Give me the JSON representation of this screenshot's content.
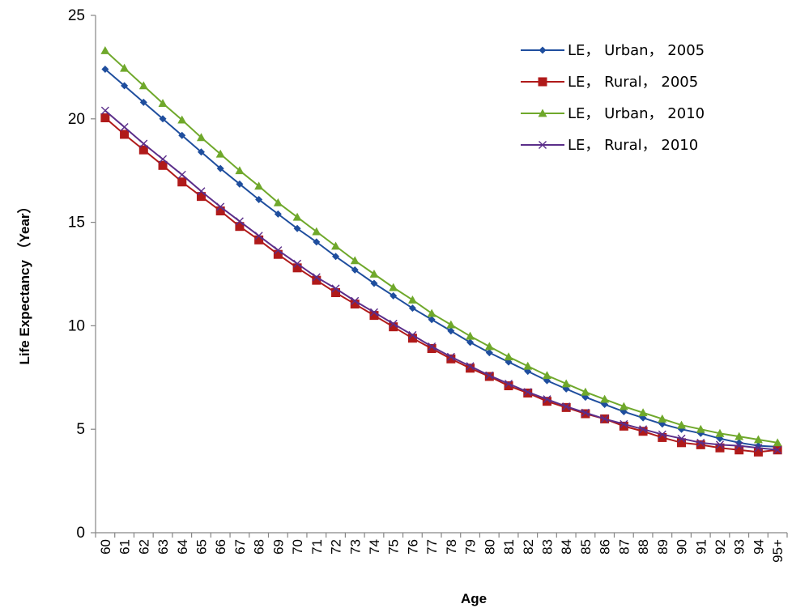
{
  "chart_data": {
    "type": "line",
    "title": "",
    "xlabel": "Age",
    "ylabel": "Life Expectancy （Year）",
    "ylim": [
      0,
      25
    ],
    "yticks": [
      "0",
      "5",
      "10",
      "15",
      "20",
      "25"
    ],
    "grid": false,
    "legend_position": "top-right",
    "categories": [
      "60",
      "61",
      "62",
      "63",
      "64",
      "65",
      "66",
      "67",
      "68",
      "69",
      "70",
      "71",
      "72",
      "73",
      "74",
      "75",
      "76",
      "77",
      "78",
      "79",
      "80",
      "81",
      "82",
      "83",
      "84",
      "85",
      "86",
      "87",
      "88",
      "89",
      "90",
      "91",
      "92",
      "93",
      "94",
      "95+"
    ],
    "series": [
      {
        "name": "LE， Urban， 2005",
        "color": "#1F4E9E",
        "marker": "diamond",
        "values": [
          22.4,
          21.6,
          20.8,
          20.0,
          19.2,
          18.4,
          17.6,
          16.85,
          16.1,
          15.4,
          14.7,
          14.05,
          13.35,
          12.7,
          12.05,
          11.45,
          10.85,
          10.3,
          9.75,
          9.2,
          8.7,
          8.25,
          7.8,
          7.35,
          6.95,
          6.55,
          6.2,
          5.85,
          5.55,
          5.25,
          5.0,
          4.8,
          4.55,
          4.35,
          4.2,
          4.15
        ]
      },
      {
        "name": "LE， Rural， 2005",
        "color": "#B01A1A",
        "marker": "square",
        "values": [
          20.05,
          19.25,
          18.5,
          17.75,
          16.95,
          16.25,
          15.55,
          14.8,
          14.15,
          13.45,
          12.8,
          12.2,
          11.6,
          11.05,
          10.5,
          9.95,
          9.4,
          8.9,
          8.4,
          7.95,
          7.55,
          7.1,
          6.75,
          6.35,
          6.05,
          5.75,
          5.5,
          5.15,
          4.9,
          4.6,
          4.35,
          4.25,
          4.1,
          4.0,
          3.9,
          4.0
        ]
      },
      {
        "name": "LE， Urban， 2010",
        "color": "#6FA82B",
        "marker": "triangle",
        "values": [
          23.3,
          22.45,
          21.6,
          20.75,
          19.95,
          19.1,
          18.3,
          17.5,
          16.75,
          15.95,
          15.25,
          14.55,
          13.85,
          13.15,
          12.5,
          11.85,
          11.25,
          10.6,
          10.05,
          9.5,
          9.0,
          8.5,
          8.05,
          7.6,
          7.2,
          6.8,
          6.45,
          6.1,
          5.8,
          5.5,
          5.2,
          5.0,
          4.8,
          4.65,
          4.5,
          4.35
        ]
      },
      {
        "name": "LE， Rural， 2010",
        "color": "#5B2E8A",
        "marker": "x",
        "values": [
          20.4,
          19.6,
          18.8,
          18.05,
          17.3,
          16.5,
          15.75,
          15.05,
          14.35,
          13.65,
          13.0,
          12.35,
          11.8,
          11.2,
          10.65,
          10.1,
          9.55,
          9.0,
          8.5,
          8.05,
          7.6,
          7.2,
          6.8,
          6.45,
          6.1,
          5.8,
          5.5,
          5.25,
          5.0,
          4.75,
          4.55,
          4.35,
          4.25,
          4.2,
          4.1,
          4.0
        ]
      }
    ]
  }
}
